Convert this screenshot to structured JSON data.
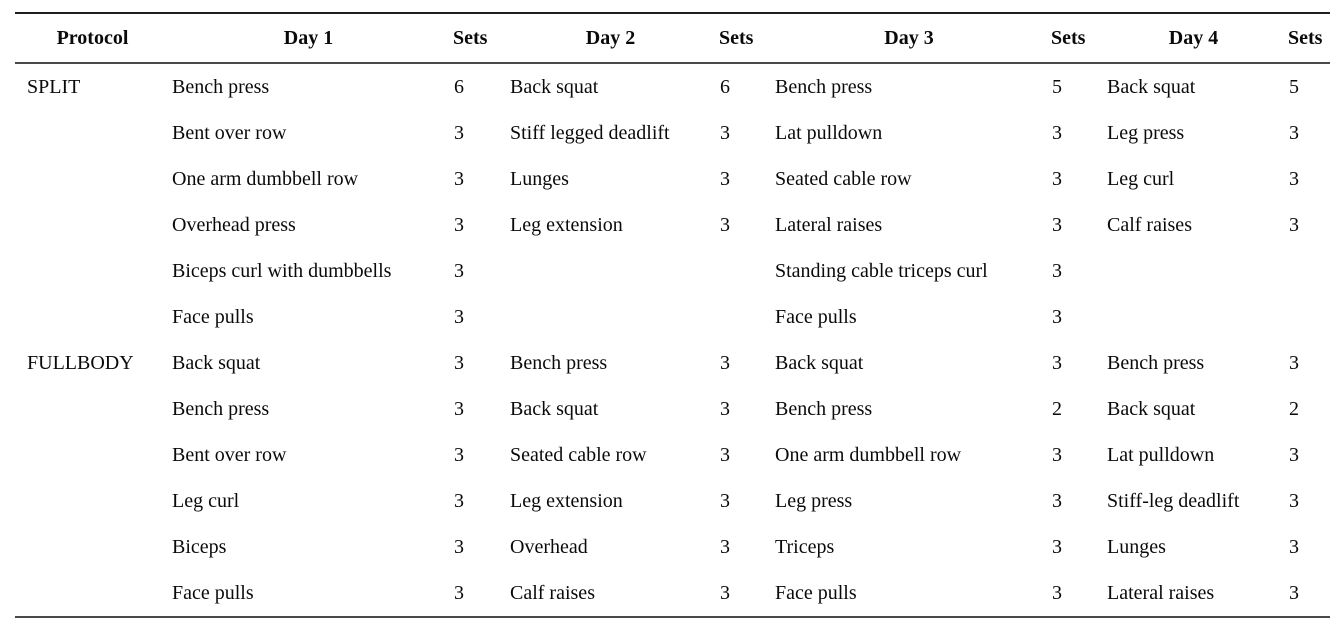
{
  "table": {
    "headers": {
      "protocol": "Protocol",
      "day1": "Day 1",
      "sets1": "Sets",
      "day2": "Day 2",
      "sets2": "Sets",
      "day3": "Day 3",
      "sets3": "Sets",
      "day4": "Day 4",
      "sets4": "Sets"
    },
    "protocols": [
      {
        "name": "SPLIT",
        "rows": [
          {
            "day1": "Bench press",
            "sets1": "6",
            "day2": "Back squat",
            "sets2": "6",
            "day3": "Bench press",
            "sets3": "5",
            "day4": "Back squat",
            "sets4": "5"
          },
          {
            "day1": "Bent over row",
            "sets1": "3",
            "day2": "Stiff legged deadlift",
            "sets2": "3",
            "day3": "Lat pulldown",
            "sets3": "3",
            "day4": "Leg press",
            "sets4": "3"
          },
          {
            "day1": "One arm dumbbell row",
            "sets1": "3",
            "day2": "Lunges",
            "sets2": "3",
            "day3": "Seated cable row",
            "sets3": "3",
            "day4": "Leg curl",
            "sets4": "3"
          },
          {
            "day1": "Overhead press",
            "sets1": "3",
            "day2": "Leg extension",
            "sets2": "3",
            "day3": "Lateral raises",
            "sets3": "3",
            "day4": "Calf raises",
            "sets4": "3"
          },
          {
            "day1": "Biceps curl with dumbbells",
            "sets1": "3",
            "day2": "",
            "sets2": "",
            "day3": "Standing cable triceps curl",
            "sets3": "3",
            "day4": "",
            "sets4": ""
          },
          {
            "day1": "Face pulls",
            "sets1": "3",
            "day2": "",
            "sets2": "",
            "day3": "Face pulls",
            "sets3": "3",
            "day4": "",
            "sets4": ""
          }
        ]
      },
      {
        "name": "FULLBODY",
        "rows": [
          {
            "day1": "Back squat",
            "sets1": "3",
            "day2": "Bench press",
            "sets2": "3",
            "day3": "Back squat",
            "sets3": "3",
            "day4": "Bench press",
            "sets4": "3"
          },
          {
            "day1": "Bench press",
            "sets1": "3",
            "day2": "Back squat",
            "sets2": "3",
            "day3": "Bench press",
            "sets3": "2",
            "day4": "Back squat",
            "sets4": "2"
          },
          {
            "day1": "Bent over row",
            "sets1": "3",
            "day2": "Seated cable row",
            "sets2": "3",
            "day3": "One arm dumbbell row",
            "sets3": "3",
            "day4": "Lat pulldown",
            "sets4": "3"
          },
          {
            "day1": "Leg curl",
            "sets1": "3",
            "day2": "Leg extension",
            "sets2": "3",
            "day3": "Leg press",
            "sets3": "3",
            "day4": "Stiff-leg deadlift",
            "sets4": "3"
          },
          {
            "day1": "Biceps",
            "sets1": "3",
            "day2": "Overhead",
            "sets2": "3",
            "day3": "Triceps",
            "sets3": "3",
            "day4": "Lunges",
            "sets4": "3"
          },
          {
            "day1": "Face pulls",
            "sets1": "3",
            "day2": "Calf raises",
            "sets2": "3",
            "day3": "Face pulls",
            "sets3": "3",
            "day4": "Lateral raises",
            "sets4": "3"
          }
        ]
      }
    ]
  }
}
